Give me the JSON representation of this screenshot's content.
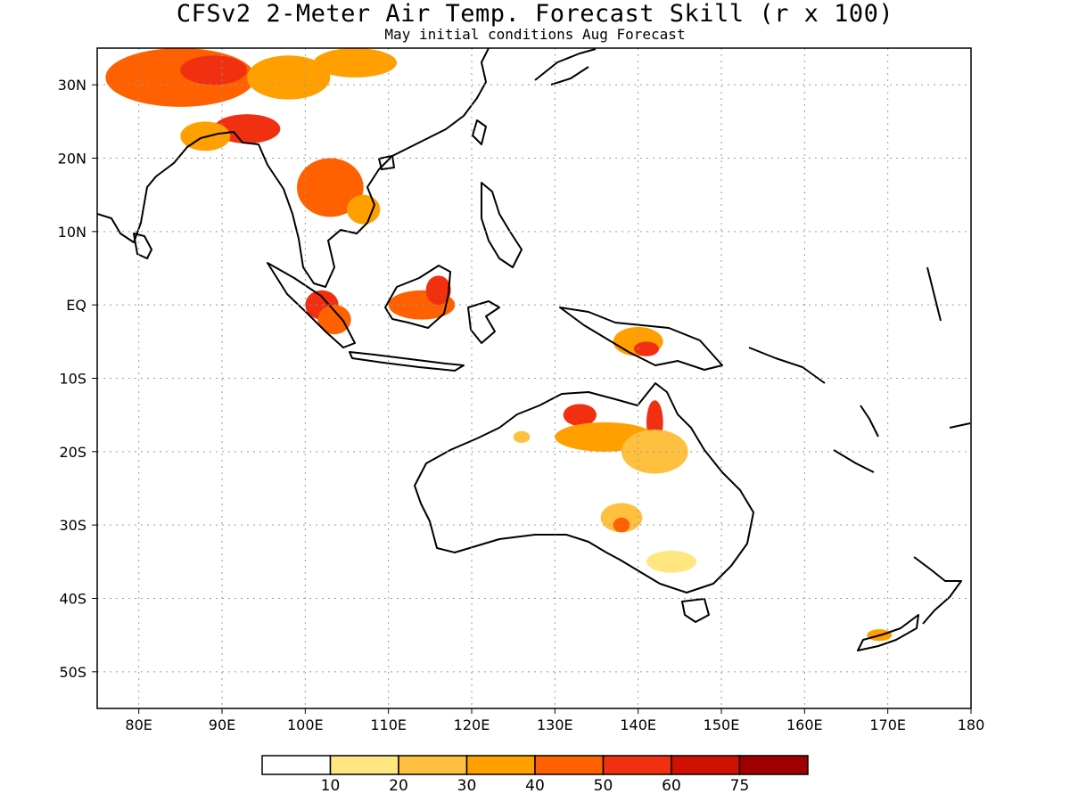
{
  "title": "CFSv2 2-Meter Air Temp. Forecast Skill (r x 100)",
  "subtitle": "May initial conditions  Aug Forecast",
  "map": {
    "lon_range": [
      75,
      180
    ],
    "lat_range": [
      -55,
      35
    ],
    "grid": true,
    "x_ticks": [
      "80E",
      "90E",
      "100E",
      "110E",
      "120E",
      "130E",
      "140E",
      "150E",
      "160E",
      "170E",
      "180"
    ],
    "x_tick_values": [
      80,
      90,
      100,
      110,
      120,
      130,
      140,
      150,
      160,
      170,
      180
    ],
    "y_ticks": [
      "30N",
      "20N",
      "10N",
      "EQ",
      "10S",
      "20S",
      "30S",
      "40S",
      "50S"
    ],
    "y_tick_values": [
      30,
      20,
      10,
      0,
      -10,
      -20,
      -30,
      -40,
      -50
    ]
  },
  "colorbar": {
    "colors": [
      "#ffffff",
      "#ffe680",
      "#ffc040",
      "#ffa000",
      "#ff6000",
      "#f03010",
      "#d01000",
      "#a00000"
    ],
    "labels": [
      "10",
      "20",
      "30",
      "40",
      "50",
      "60",
      "75"
    ]
  },
  "skill_regions": [
    {
      "lon": 85,
      "lat": 31,
      "rx": 9,
      "ry": 4,
      "level": 4
    },
    {
      "lon": 89,
      "lat": 32,
      "rx": 4,
      "ry": 2,
      "level": 5
    },
    {
      "lon": 98,
      "lat": 31,
      "rx": 5,
      "ry": 3,
      "level": 3
    },
    {
      "lon": 106,
      "lat": 33,
      "rx": 5,
      "ry": 2,
      "level": 3
    },
    {
      "lon": 93,
      "lat": 24,
      "rx": 4,
      "ry": 2,
      "level": 5
    },
    {
      "lon": 88,
      "lat": 23,
      "rx": 3,
      "ry": 2,
      "level": 3
    },
    {
      "lon": 103,
      "lat": 16,
      "rx": 4,
      "ry": 4,
      "level": 4
    },
    {
      "lon": 107,
      "lat": 13,
      "rx": 2,
      "ry": 2,
      "level": 3
    },
    {
      "lon": 102,
      "lat": 0,
      "rx": 2,
      "ry": 2,
      "level": 5
    },
    {
      "lon": 103.5,
      "lat": -2,
      "rx": 2,
      "ry": 2,
      "level": 4
    },
    {
      "lon": 114,
      "lat": 0,
      "rx": 4,
      "ry": 2,
      "level": 4
    },
    {
      "lon": 116,
      "lat": 2,
      "rx": 1.5,
      "ry": 2,
      "level": 5
    },
    {
      "lon": 140,
      "lat": -5,
      "rx": 3,
      "ry": 2,
      "level": 3
    },
    {
      "lon": 141,
      "lat": -6,
      "rx": 1.5,
      "ry": 1,
      "level": 5
    },
    {
      "lon": 133,
      "lat": -15,
      "rx": 2,
      "ry": 1.5,
      "level": 5
    },
    {
      "lon": 142,
      "lat": -16,
      "rx": 1,
      "ry": 3,
      "level": 5
    },
    {
      "lon": 136,
      "lat": -18,
      "rx": 6,
      "ry": 2,
      "level": 3
    },
    {
      "lon": 142,
      "lat": -20,
      "rx": 4,
      "ry": 3,
      "level": 2
    },
    {
      "lon": 138,
      "lat": -29,
      "rx": 2.5,
      "ry": 2,
      "level": 2
    },
    {
      "lon": 138,
      "lat": -30,
      "rx": 1,
      "ry": 1,
      "level": 4
    },
    {
      "lon": 144,
      "lat": -35,
      "rx": 3,
      "ry": 1.5,
      "level": 1
    },
    {
      "lon": 169,
      "lat": -45,
      "rx": 1.5,
      "ry": 0.8,
      "level": 3
    },
    {
      "lon": 126,
      "lat": -18,
      "rx": 1,
      "ry": 0.8,
      "level": 2
    }
  ]
}
